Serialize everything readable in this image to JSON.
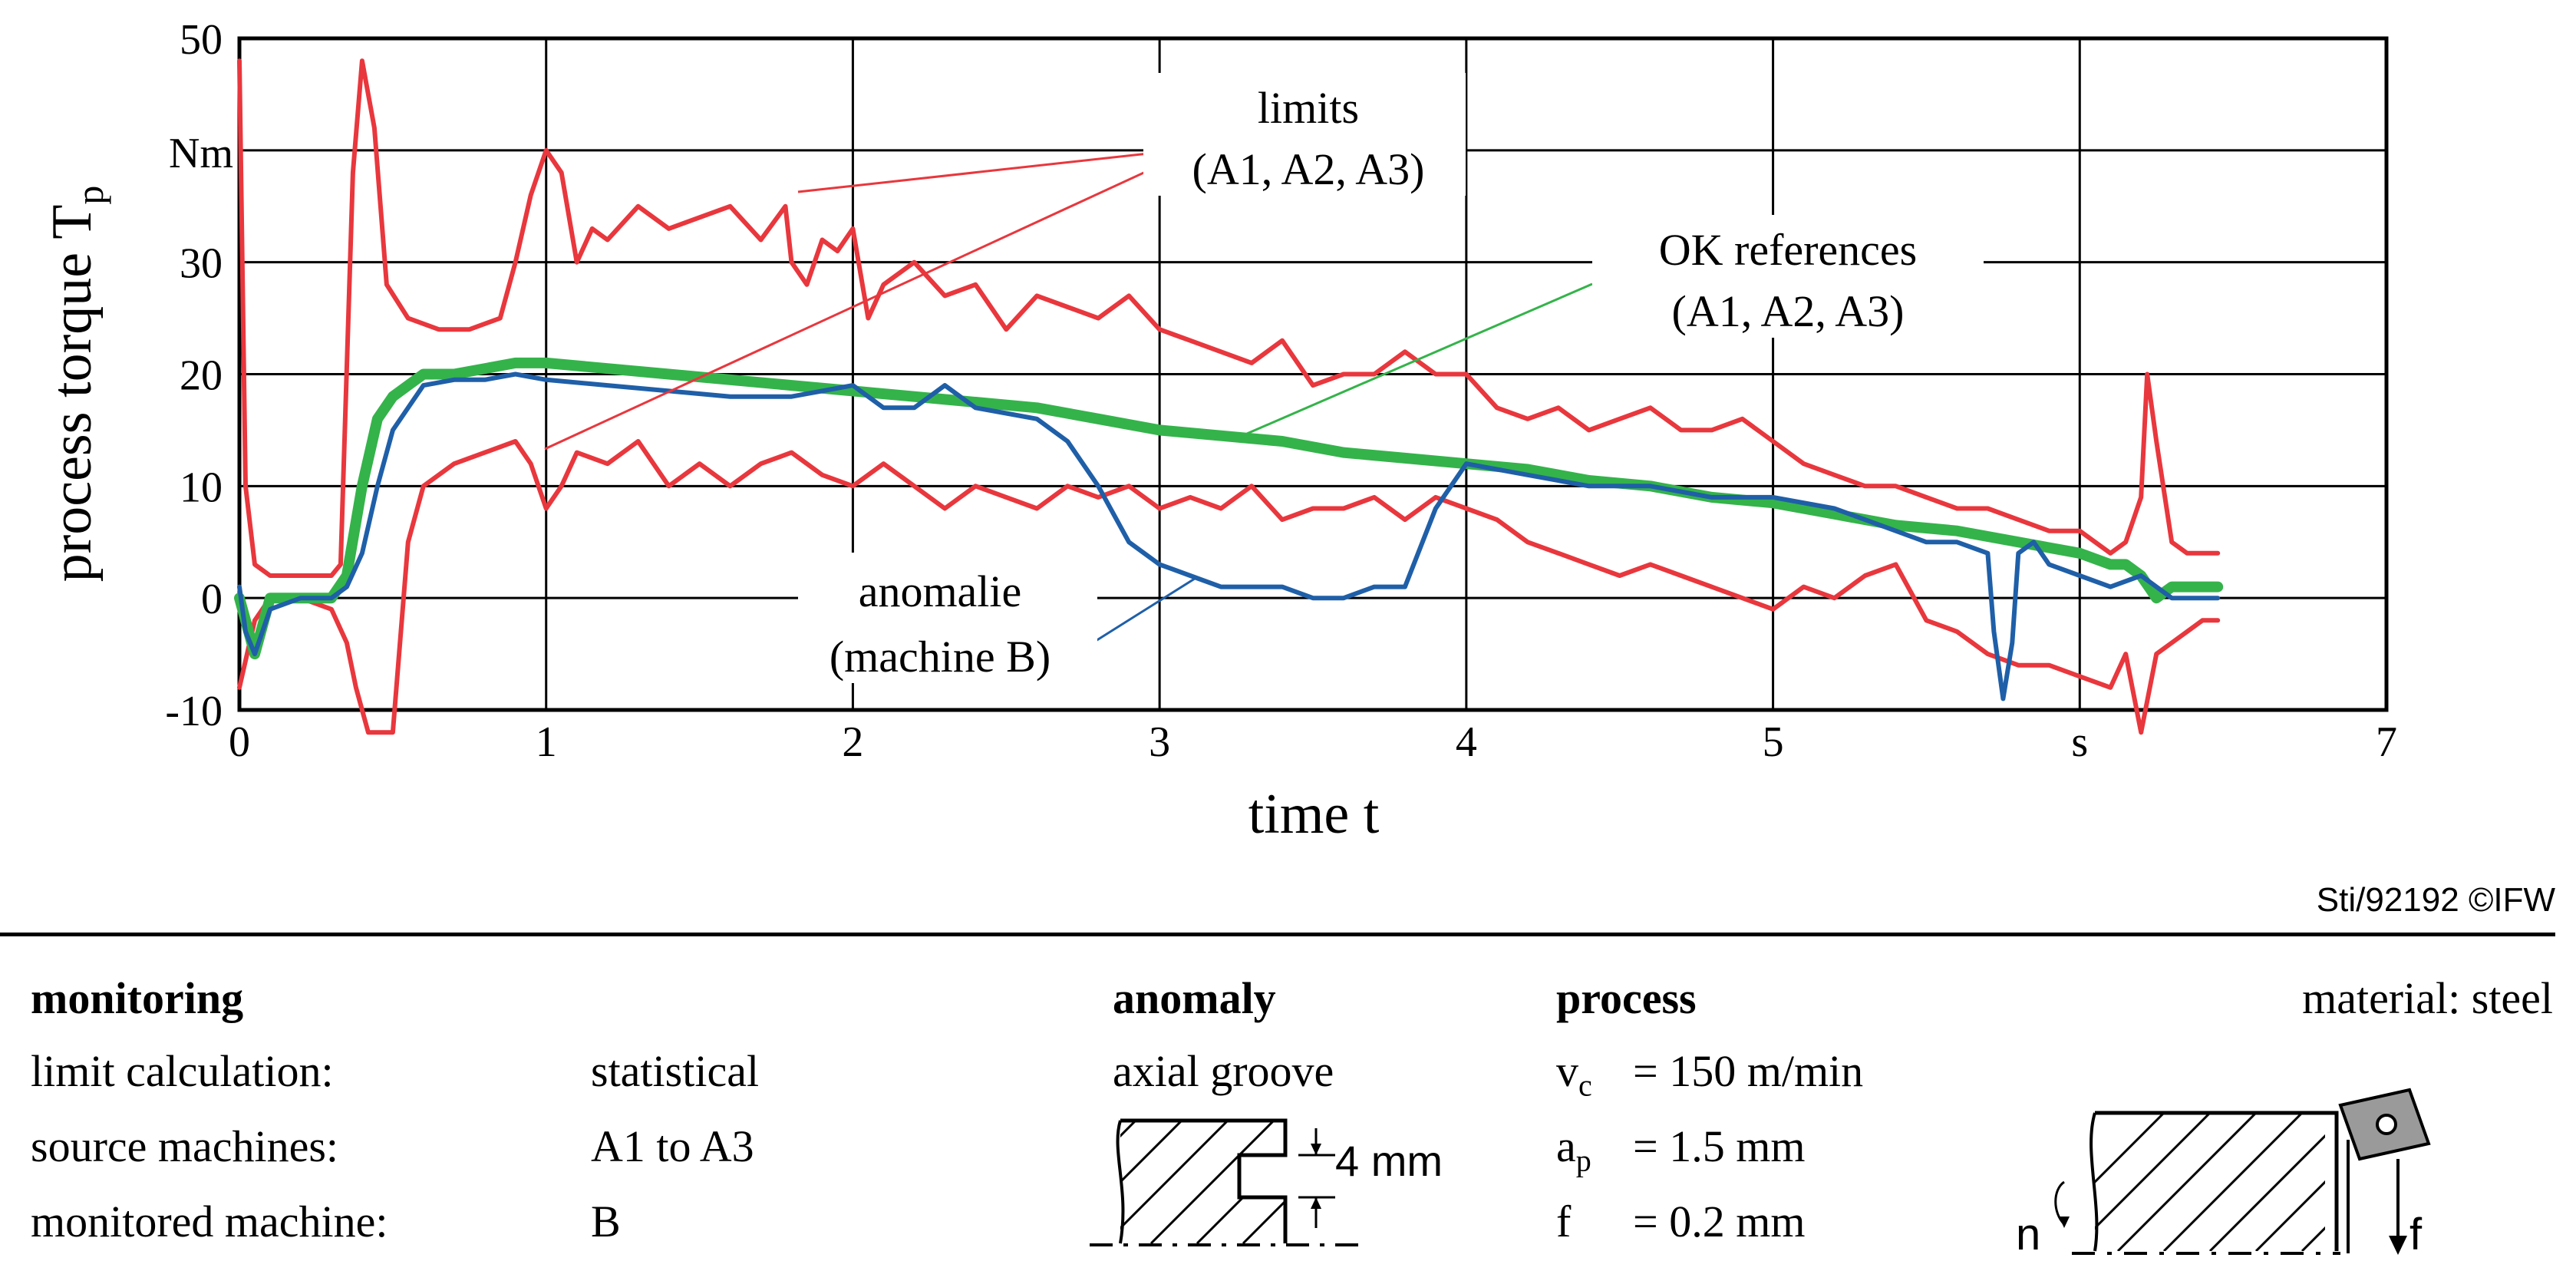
{
  "chart_data": {
    "type": "line",
    "ylabel": "process torque T",
    "ylabel_subscript": "p",
    "y_unit_label": "Nm",
    "xlabel": "time t",
    "x_unit_label": "s",
    "xlim": [
      0,
      7
    ],
    "ylim": [
      -10,
      50
    ],
    "x_ticks": [
      "0",
      "1",
      "2",
      "3",
      "4",
      "5",
      "7"
    ],
    "y_ticks": [
      "50",
      "30",
      "20",
      "10",
      "0",
      "-10"
    ],
    "grid": true,
    "annotations": {
      "limits": [
        "limits",
        "(A1, A2, A3)"
      ],
      "ok_references": [
        "OK references",
        "(A1, A2, A3)"
      ],
      "anomalie": [
        "anomalie",
        "(machine B)"
      ]
    },
    "series": [
      {
        "name": "limits (A1, A2, A3) upper",
        "color": "#e8373d",
        "x": [
          0.0,
          0.02,
          0.05,
          0.1,
          0.2,
          0.3,
          0.33,
          0.37,
          0.4,
          0.44,
          0.48,
          0.55,
          0.65,
          0.75,
          0.85,
          0.9,
          0.95,
          1.0,
          1.05,
          1.1,
          1.15,
          1.2,
          1.3,
          1.4,
          1.5,
          1.6,
          1.7,
          1.78,
          1.8,
          1.85,
          1.9,
          1.95,
          2.0,
          2.05,
          2.1,
          2.2,
          2.3,
          2.4,
          2.5,
          2.6,
          2.7,
          2.8,
          2.9,
          3.0,
          3.1,
          3.2,
          3.3,
          3.4,
          3.5,
          3.6,
          3.7,
          3.8,
          3.9,
          4.0,
          4.1,
          4.2,
          4.3,
          4.4,
          4.5,
          4.6,
          4.7,
          4.8,
          4.9,
          5.0,
          5.1,
          5.2,
          5.3,
          5.4,
          5.5,
          5.6,
          5.7,
          5.8,
          5.9,
          6.0,
          6.1,
          6.15,
          6.2,
          6.22,
          6.25,
          6.3,
          6.35,
          6.4,
          6.45
        ],
        "y": [
          48,
          10,
          3,
          2,
          2,
          2,
          3,
          38,
          48,
          42,
          28,
          25,
          24,
          24,
          25,
          30,
          36,
          40,
          38,
          30,
          33,
          32,
          35,
          33,
          34,
          35,
          32,
          35,
          30,
          28,
          32,
          31,
          33,
          25,
          28,
          30,
          27,
          28,
          24,
          27,
          26,
          25,
          27,
          24,
          23,
          22,
          21,
          23,
          19,
          20,
          20,
          22,
          20,
          20,
          17,
          16,
          17,
          15,
          16,
          17,
          15,
          15,
          16,
          14,
          12,
          11,
          10,
          10,
          9,
          8,
          8,
          7,
          6,
          6,
          4,
          5,
          9,
          20,
          14,
          5,
          4,
          4,
          4
        ]
      },
      {
        "name": "limits (A1, A2, A3) lower",
        "color": "#e8373d",
        "x": [
          0.0,
          0.05,
          0.1,
          0.2,
          0.3,
          0.35,
          0.38,
          0.42,
          0.5,
          0.55,
          0.6,
          0.7,
          0.8,
          0.9,
          0.95,
          1.0,
          1.05,
          1.1,
          1.2,
          1.3,
          1.4,
          1.5,
          1.6,
          1.7,
          1.8,
          1.9,
          2.0,
          2.1,
          2.2,
          2.3,
          2.4,
          2.5,
          2.6,
          2.7,
          2.8,
          2.9,
          3.0,
          3.1,
          3.2,
          3.3,
          3.4,
          3.5,
          3.6,
          3.7,
          3.8,
          3.9,
          4.0,
          4.1,
          4.2,
          4.3,
          4.4,
          4.5,
          4.6,
          4.7,
          4.8,
          4.9,
          5.0,
          5.1,
          5.2,
          5.3,
          5.4,
          5.5,
          5.6,
          5.7,
          5.8,
          5.9,
          6.0,
          6.1,
          6.15,
          6.2,
          6.25,
          6.3,
          6.35,
          6.4,
          6.45
        ],
        "y": [
          -8,
          -2,
          0,
          0,
          -1,
          -4,
          -8,
          -12,
          -12,
          5,
          10,
          12,
          13,
          14,
          12,
          8,
          10,
          13,
          12,
          14,
          10,
          12,
          10,
          12,
          13,
          11,
          10,
          12,
          10,
          8,
          10,
          9,
          8,
          10,
          9,
          10,
          8,
          9,
          8,
          10,
          7,
          8,
          8,
          9,
          7,
          9,
          8,
          7,
          5,
          4,
          3,
          2,
          3,
          2,
          1,
          0,
          -1,
          1,
          0,
          2,
          3,
          -2,
          -3,
          -5,
          -6,
          -6,
          -7,
          -8,
          -5,
          -12,
          -5,
          -4,
          -3,
          -2,
          -2
        ]
      },
      {
        "name": "OK references (A1, A2, A3)",
        "color": "#34b34a",
        "x": [
          0.0,
          0.05,
          0.1,
          0.2,
          0.3,
          0.35,
          0.4,
          0.45,
          0.5,
          0.55,
          0.6,
          0.7,
          0.8,
          0.9,
          1.0,
          1.2,
          1.4,
          1.6,
          1.8,
          2.0,
          2.2,
          2.4,
          2.6,
          2.8,
          3.0,
          3.2,
          3.4,
          3.6,
          3.8,
          4.0,
          4.2,
          4.4,
          4.6,
          4.8,
          5.0,
          5.2,
          5.4,
          5.6,
          5.8,
          6.0,
          6.1,
          6.15,
          6.2,
          6.25,
          6.3,
          6.35,
          6.4,
          6.45
        ],
        "y": [
          0,
          -5,
          0,
          0,
          0,
          2,
          10,
          16,
          18,
          19,
          20,
          20,
          20.5,
          21,
          21,
          20.5,
          20,
          19.5,
          19,
          18.5,
          18,
          17.5,
          17,
          16,
          15,
          14.5,
          14,
          13,
          12.5,
          12,
          11.5,
          10.5,
          10,
          9,
          8.5,
          7.5,
          6.5,
          6,
          5,
          4,
          3,
          3,
          2,
          0,
          1,
          1,
          1,
          1
        ]
      },
      {
        "name": "anomalie (machine B)",
        "color": "#1f5fa8",
        "x": [
          0.0,
          0.02,
          0.05,
          0.1,
          0.2,
          0.3,
          0.35,
          0.4,
          0.45,
          0.5,
          0.55,
          0.6,
          0.7,
          0.8,
          0.9,
          1.0,
          1.2,
          1.4,
          1.6,
          1.8,
          2.0,
          2.1,
          2.2,
          2.3,
          2.4,
          2.5,
          2.6,
          2.7,
          2.8,
          2.9,
          3.0,
          3.1,
          3.2,
          3.3,
          3.4,
          3.5,
          3.6,
          3.7,
          3.8,
          3.9,
          4.0,
          4.2,
          4.4,
          4.6,
          4.8,
          5.0,
          5.2,
          5.4,
          5.5,
          5.6,
          5.7,
          5.72,
          5.75,
          5.78,
          5.8,
          5.85,
          5.9,
          6.0,
          6.1,
          6.2,
          6.25,
          6.3,
          6.4,
          6.45
        ],
        "y": [
          1,
          -3,
          -5,
          -1,
          0,
          0,
          1,
          4,
          10,
          15,
          17,
          19,
          19.5,
          19.5,
          20,
          19.5,
          19,
          18.5,
          18,
          18,
          19,
          17,
          17,
          19,
          17,
          16.5,
          16,
          14,
          10,
          5,
          3,
          2,
          1,
          1,
          1,
          0,
          0,
          1,
          1,
          8,
          12,
          11,
          10,
          10,
          9,
          9,
          8,
          6,
          5,
          5,
          4,
          -3,
          -9,
          -4,
          4,
          5,
          3,
          2,
          1,
          2,
          1,
          0,
          0,
          0
        ]
      }
    ]
  },
  "footer": {
    "copyright": "Sti/92192 ©IFW",
    "monitoring_heading": "monitoring",
    "limit_calc_label": "limit calculation:",
    "limit_calc_value": "statistical",
    "source_label": "source machines:",
    "source_value": "A1 to A3",
    "monitored_label": "monitored machine:",
    "monitored_value": "B",
    "anomaly_heading": "anomaly",
    "anomaly_value": "axial groove",
    "groove_depth": "4 mm",
    "process_heading": "process",
    "vc_symbol": "v",
    "vc_sub": "c",
    "vc_value": "= 150 m/min",
    "ap_symbol": "a",
    "ap_sub": "p",
    "ap_value": "= 1.5 mm",
    "f_symbol": "f",
    "f_value": "= 0.2 mm",
    "material": "material: steel",
    "spindle_label": "n",
    "feed_label": "f"
  }
}
